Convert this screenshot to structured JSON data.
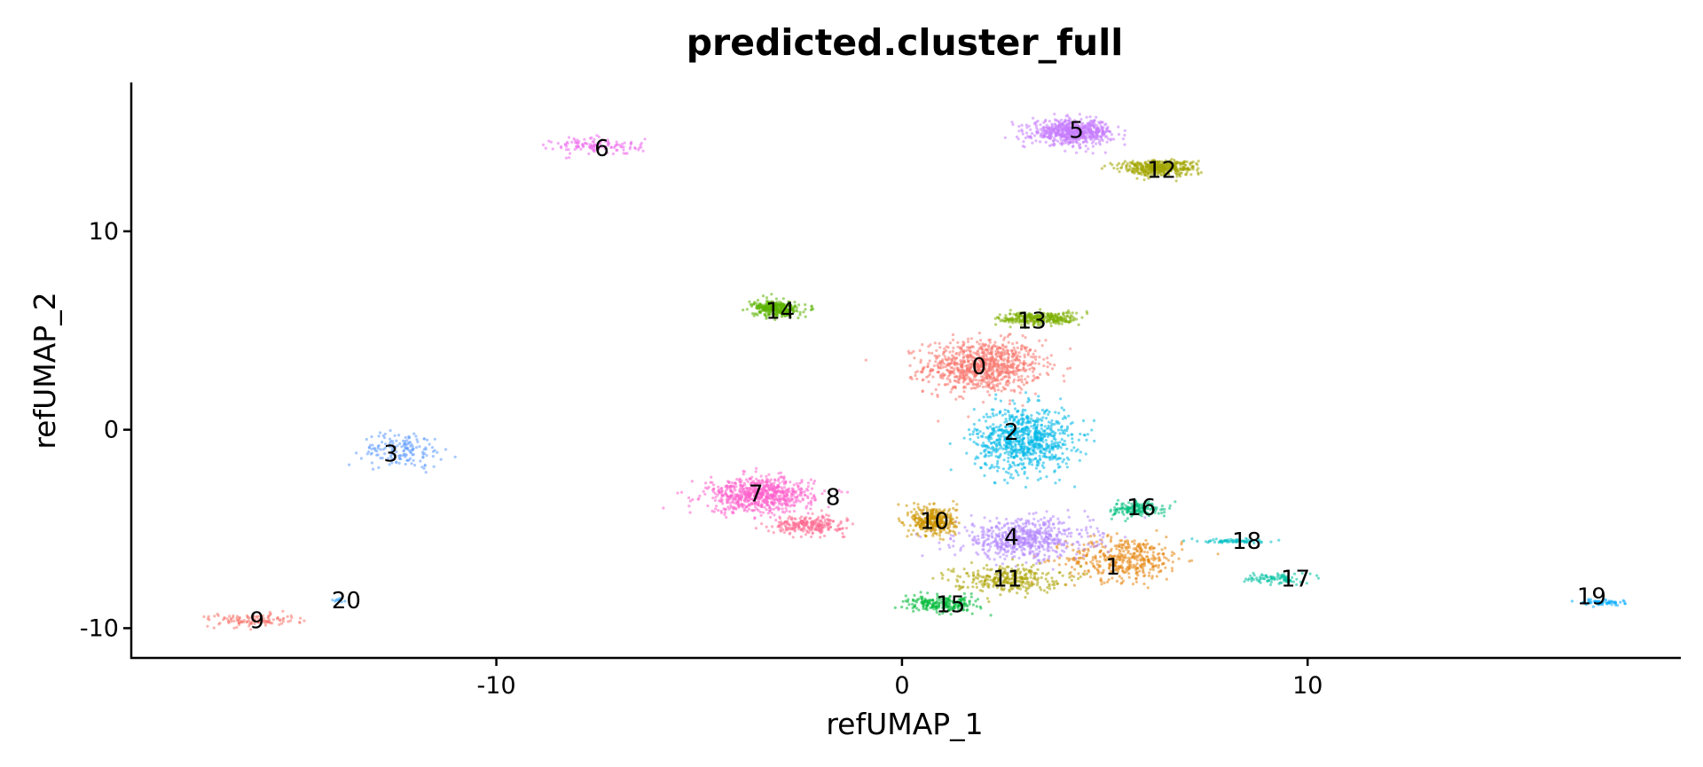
{
  "chart_data": {
    "type": "scatter",
    "title": "predicted.cluster_full",
    "xlabel": "refUMAP_1",
    "ylabel": "refUMAP_2",
    "xlim": [
      -19,
      19.2
    ],
    "ylim": [
      -11.5,
      17.5
    ],
    "xticks": [
      -10,
      0,
      10
    ],
    "yticks": [
      -10,
      0,
      10
    ],
    "grid": false,
    "legend": "none",
    "clusters": [
      {
        "label": "0",
        "color": "#F8766D",
        "x": 2.0,
        "y": 3.2,
        "sx": 1.3,
        "sy": 1.2,
        "n": 900
      },
      {
        "label": "1",
        "color": "#E68613",
        "x": 5.5,
        "y": -6.5,
        "sx": 1.3,
        "sy": 1.0,
        "n": 420
      },
      {
        "label": "2",
        "color": "#00B8E7",
        "x": 3.0,
        "y": -0.5,
        "sx": 1.1,
        "sy": 1.5,
        "n": 800
      },
      {
        "label": "3",
        "color": "#619CFF",
        "x": -12.3,
        "y": -1.0,
        "sx": 0.9,
        "sy": 0.8,
        "n": 160
      },
      {
        "label": "4",
        "color": "#B385FF",
        "x": 3.0,
        "y": -5.5,
        "sx": 1.5,
        "sy": 0.9,
        "n": 600
      },
      {
        "label": "5",
        "color": "#C77CFF",
        "x": 4.2,
        "y": 15.0,
        "sx": 0.9,
        "sy": 0.55,
        "n": 650
      },
      {
        "label": "6",
        "color": "#ED68ED",
        "x": -7.5,
        "y": 14.3,
        "sx": 1.0,
        "sy": 0.4,
        "n": 120
      },
      {
        "label": "7",
        "color": "#FF61CC",
        "x": -3.5,
        "y": -3.3,
        "sx": 1.2,
        "sy": 0.8,
        "n": 700
      },
      {
        "label": "8",
        "color": "#FF6C91",
        "x": -2.3,
        "y": -4.8,
        "sx": 0.8,
        "sy": 0.4,
        "n": 250
      },
      {
        "label": "9",
        "color": "#F8766D",
        "x": -16.0,
        "y": -9.6,
        "sx": 1.0,
        "sy": 0.3,
        "n": 120
      },
      {
        "label": "10",
        "color": "#CD9600",
        "x": 0.8,
        "y": -4.6,
        "sx": 0.5,
        "sy": 0.7,
        "n": 350
      },
      {
        "label": "11",
        "color": "#ABA300",
        "x": 2.6,
        "y": -7.5,
        "sx": 1.2,
        "sy": 0.6,
        "n": 300
      },
      {
        "label": "12",
        "color": "#A3A500",
        "x": 6.3,
        "y": 13.2,
        "sx": 0.85,
        "sy": 0.35,
        "n": 420
      },
      {
        "label": "13",
        "color": "#7CAE00",
        "x": 3.4,
        "y": 5.6,
        "sx": 0.9,
        "sy": 0.3,
        "n": 300
      },
      {
        "label": "14",
        "color": "#5BB300",
        "x": -3.1,
        "y": 6.1,
        "sx": 0.5,
        "sy": 0.35,
        "n": 350
      },
      {
        "label": "15",
        "color": "#00BA38",
        "x": 1.0,
        "y": -8.8,
        "sx": 0.8,
        "sy": 0.35,
        "n": 220
      },
      {
        "label": "16",
        "color": "#00BF7D",
        "x": 5.8,
        "y": -4.0,
        "sx": 0.6,
        "sy": 0.35,
        "n": 160
      },
      {
        "label": "17",
        "color": "#00C1A3",
        "x": 9.2,
        "y": -7.5,
        "sx": 0.6,
        "sy": 0.25,
        "n": 90
      },
      {
        "label": "18",
        "color": "#00BFC4",
        "x": 8.2,
        "y": -5.6,
        "sx": 0.7,
        "sy": 0.1,
        "n": 70
      },
      {
        "label": "19",
        "color": "#00A9FF",
        "x": 17.3,
        "y": -8.7,
        "sx": 0.5,
        "sy": 0.12,
        "n": 60
      },
      {
        "label": "20",
        "color": "#35A2FF",
        "x": -13.9,
        "y": -8.6,
        "sx": 0.15,
        "sy": 0.1,
        "n": 10
      }
    ],
    "labels": [
      {
        "text": "0",
        "x": 1.9,
        "y": 3.2
      },
      {
        "text": "1",
        "x": 5.2,
        "y": -6.9
      },
      {
        "text": "2",
        "x": 2.7,
        "y": -0.1
      },
      {
        "text": "3",
        "x": -12.6,
        "y": -1.2
      },
      {
        "text": "4",
        "x": 2.7,
        "y": -5.4
      },
      {
        "text": "5",
        "x": 4.3,
        "y": 15.1
      },
      {
        "text": "6",
        "x": -7.4,
        "y": 14.2
      },
      {
        "text": "7",
        "x": -3.6,
        "y": -3.2
      },
      {
        "text": "8",
        "x": -1.7,
        "y": -3.4
      },
      {
        "text": "9",
        "x": -15.9,
        "y": -9.6
      },
      {
        "text": "10",
        "x": 0.8,
        "y": -4.6
      },
      {
        "text": "11",
        "x": 2.6,
        "y": -7.5
      },
      {
        "text": "12",
        "x": 6.4,
        "y": 13.1
      },
      {
        "text": "13",
        "x": 3.2,
        "y": 5.5
      },
      {
        "text": "14",
        "x": -3.0,
        "y": 6.0
      },
      {
        "text": "15",
        "x": 1.2,
        "y": -8.8
      },
      {
        "text": "16",
        "x": 5.9,
        "y": -3.9
      },
      {
        "text": "17",
        "x": 9.7,
        "y": -7.5
      },
      {
        "text": "18",
        "x": 8.5,
        "y": -5.6
      },
      {
        "text": "19",
        "x": 17.0,
        "y": -8.4
      },
      {
        "text": "20",
        "x": -13.7,
        "y": -8.6
      }
    ]
  }
}
